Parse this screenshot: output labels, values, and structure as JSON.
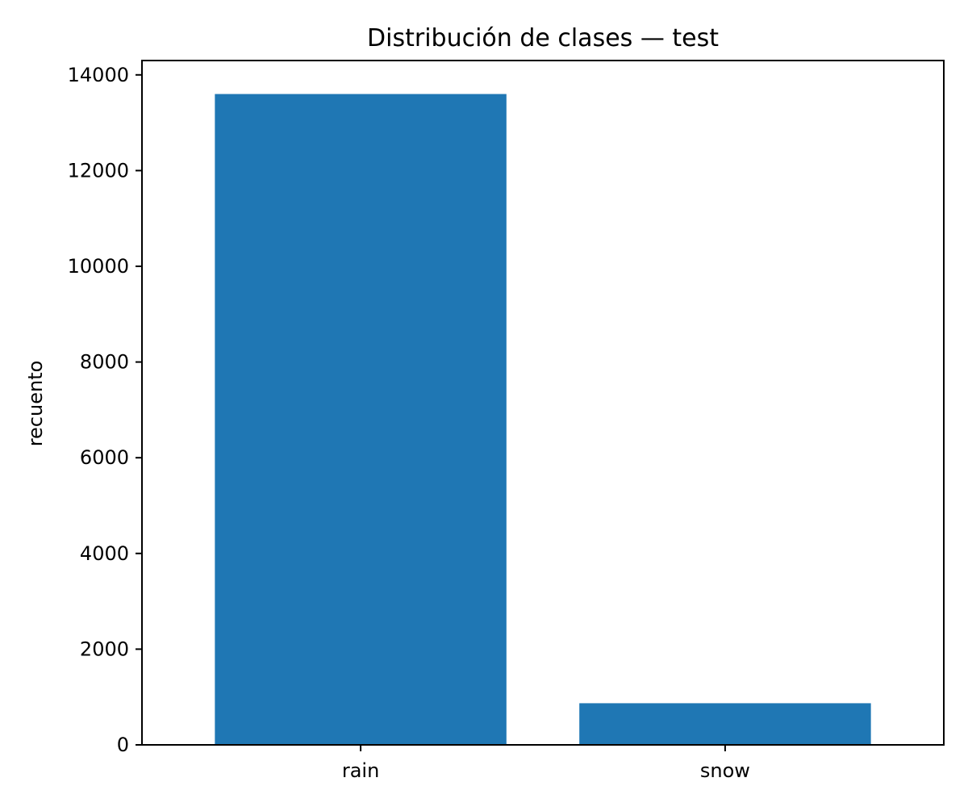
{
  "chart_data": {
    "type": "bar",
    "title": "Distribución de clases — test",
    "xlabel": "",
    "ylabel": "recuento",
    "categories": [
      "rain",
      "snow"
    ],
    "values": [
      13600,
      870
    ],
    "ylim": [
      0,
      14300
    ],
    "yticks": [
      0,
      2000,
      4000,
      6000,
      8000,
      10000,
      12000,
      14000
    ],
    "ytick_labels": [
      "0",
      "2000",
      "4000",
      "6000",
      "8000",
      "10000",
      "12000",
      "14000"
    ],
    "bar_color": "#1f77b4",
    "grid": false,
    "legend": "none"
  }
}
